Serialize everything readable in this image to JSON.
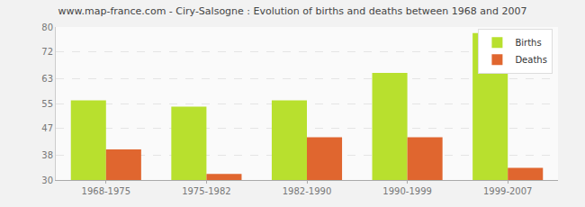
{
  "chart_data": {
    "type": "bar",
    "title": "www.map-france.com - Ciry-Salsogne : Evolution of births and deaths between 1968 and 2007",
    "categories": [
      "1968-1975",
      "1975-1982",
      "1982-1990",
      "1990-1999",
      "1999-2007"
    ],
    "series": [
      {
        "name": "Births",
        "color": "#b8e02e",
        "values": [
          56,
          54,
          56,
          65,
          78
        ]
      },
      {
        "name": "Deaths",
        "color": "#e0662f",
        "values": [
          40,
          32,
          44,
          44,
          34
        ]
      }
    ],
    "ylim": [
      30,
      80
    ],
    "yticks": [
      30,
      38,
      47,
      55,
      63,
      72,
      80
    ],
    "grid": true,
    "legend": "top right"
  }
}
